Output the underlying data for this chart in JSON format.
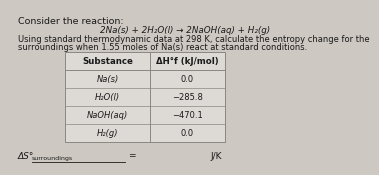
{
  "title_line1": "Consider the reaction:",
  "reaction": "2Na(s) + 2H₂O(l) → 2NaOH(aq) + H₂(g)",
  "description_line1": "Using standard thermodynamic data at 298 K, calculate the entropy change for the",
  "description_line2": "surroundings when 1.55 moles of Na(s) react at standard conditions.",
  "table_header_col1": "Substance",
  "table_header_col2": "ΔH°f (kJ/mol)",
  "table_rows": [
    [
      "Na(s)",
      "0.0"
    ],
    [
      "H₂O(l)",
      "−285.8"
    ],
    [
      "NaOH(aq)",
      "−470.1"
    ],
    [
      "H₂(g)",
      "0.0"
    ]
  ],
  "answer_label": "ΔS°",
  "answer_subscript": "surroundings",
  "answer_equals": "=",
  "answer_units": "J/K",
  "bg_color": "#cdc8c2",
  "text_color": "#1a1a1a",
  "table_bg": "#ddd9d4",
  "table_border": "#888880",
  "font_size_title": 6.8,
  "font_size_reaction": 6.3,
  "font_size_desc": 6.0,
  "font_size_table_header": 6.2,
  "font_size_table_data": 6.0,
  "font_size_answer": 6.5
}
